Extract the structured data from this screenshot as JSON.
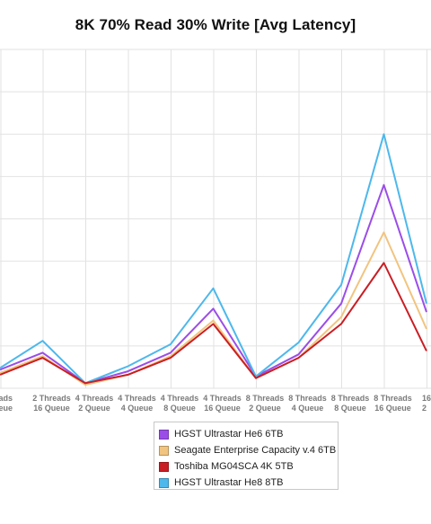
{
  "chart_data": {
    "type": "line",
    "title": "8K 70% Read 30% Write [Avg Latency]",
    "categories": [
      [
        "Threads",
        "Queue"
      ],
      [
        "2 Threads",
        "16 Queue"
      ],
      [
        "4 Threads",
        "2 Queue"
      ],
      [
        "4 Threads",
        "4 Queue"
      ],
      [
        "4 Threads",
        "8 Queue"
      ],
      [
        "4 Threads",
        "16 Queue"
      ],
      [
        "8 Threads",
        "2 Queue"
      ],
      [
        "8 Threads",
        "4 Queue"
      ],
      [
        "8 Threads",
        "8 Queue"
      ],
      [
        "8 Threads",
        "16 Queue"
      ],
      [
        "16",
        "2"
      ]
    ],
    "series": [
      {
        "name": "HGST Ultrastar He6 6TB",
        "color": "#9b4de8",
        "values": [
          1.1,
          2.1,
          0.3,
          1.0,
          2.1,
          4.7,
          0.7,
          2.0,
          5.0,
          12.0,
          4.5
        ]
      },
      {
        "name": "Seagate Enterprise Capacity v.4 6TB",
        "color": "#f1c47f",
        "values": [
          0.9,
          1.9,
          0.2,
          0.8,
          1.9,
          4.0,
          0.6,
          1.8,
          4.2,
          9.2,
          3.5
        ]
      },
      {
        "name": "Toshiba MG04SCA 4K 5TB",
        "color": "#c91e24",
        "values": [
          0.8,
          1.8,
          0.3,
          0.8,
          1.8,
          3.8,
          0.6,
          1.8,
          3.8,
          7.4,
          2.2
        ]
      },
      {
        "name": "HGST Ultrastar He8 8TB",
        "color": "#4db8ec",
        "values": [
          1.2,
          2.8,
          0.3,
          1.3,
          2.6,
          5.9,
          0.7,
          2.7,
          6.1,
          15.0,
          5.0
        ]
      }
    ],
    "ylim": [
      0,
      20
    ],
    "y_gridlines": 8,
    "grid": true,
    "legend_position": "bottom"
  }
}
